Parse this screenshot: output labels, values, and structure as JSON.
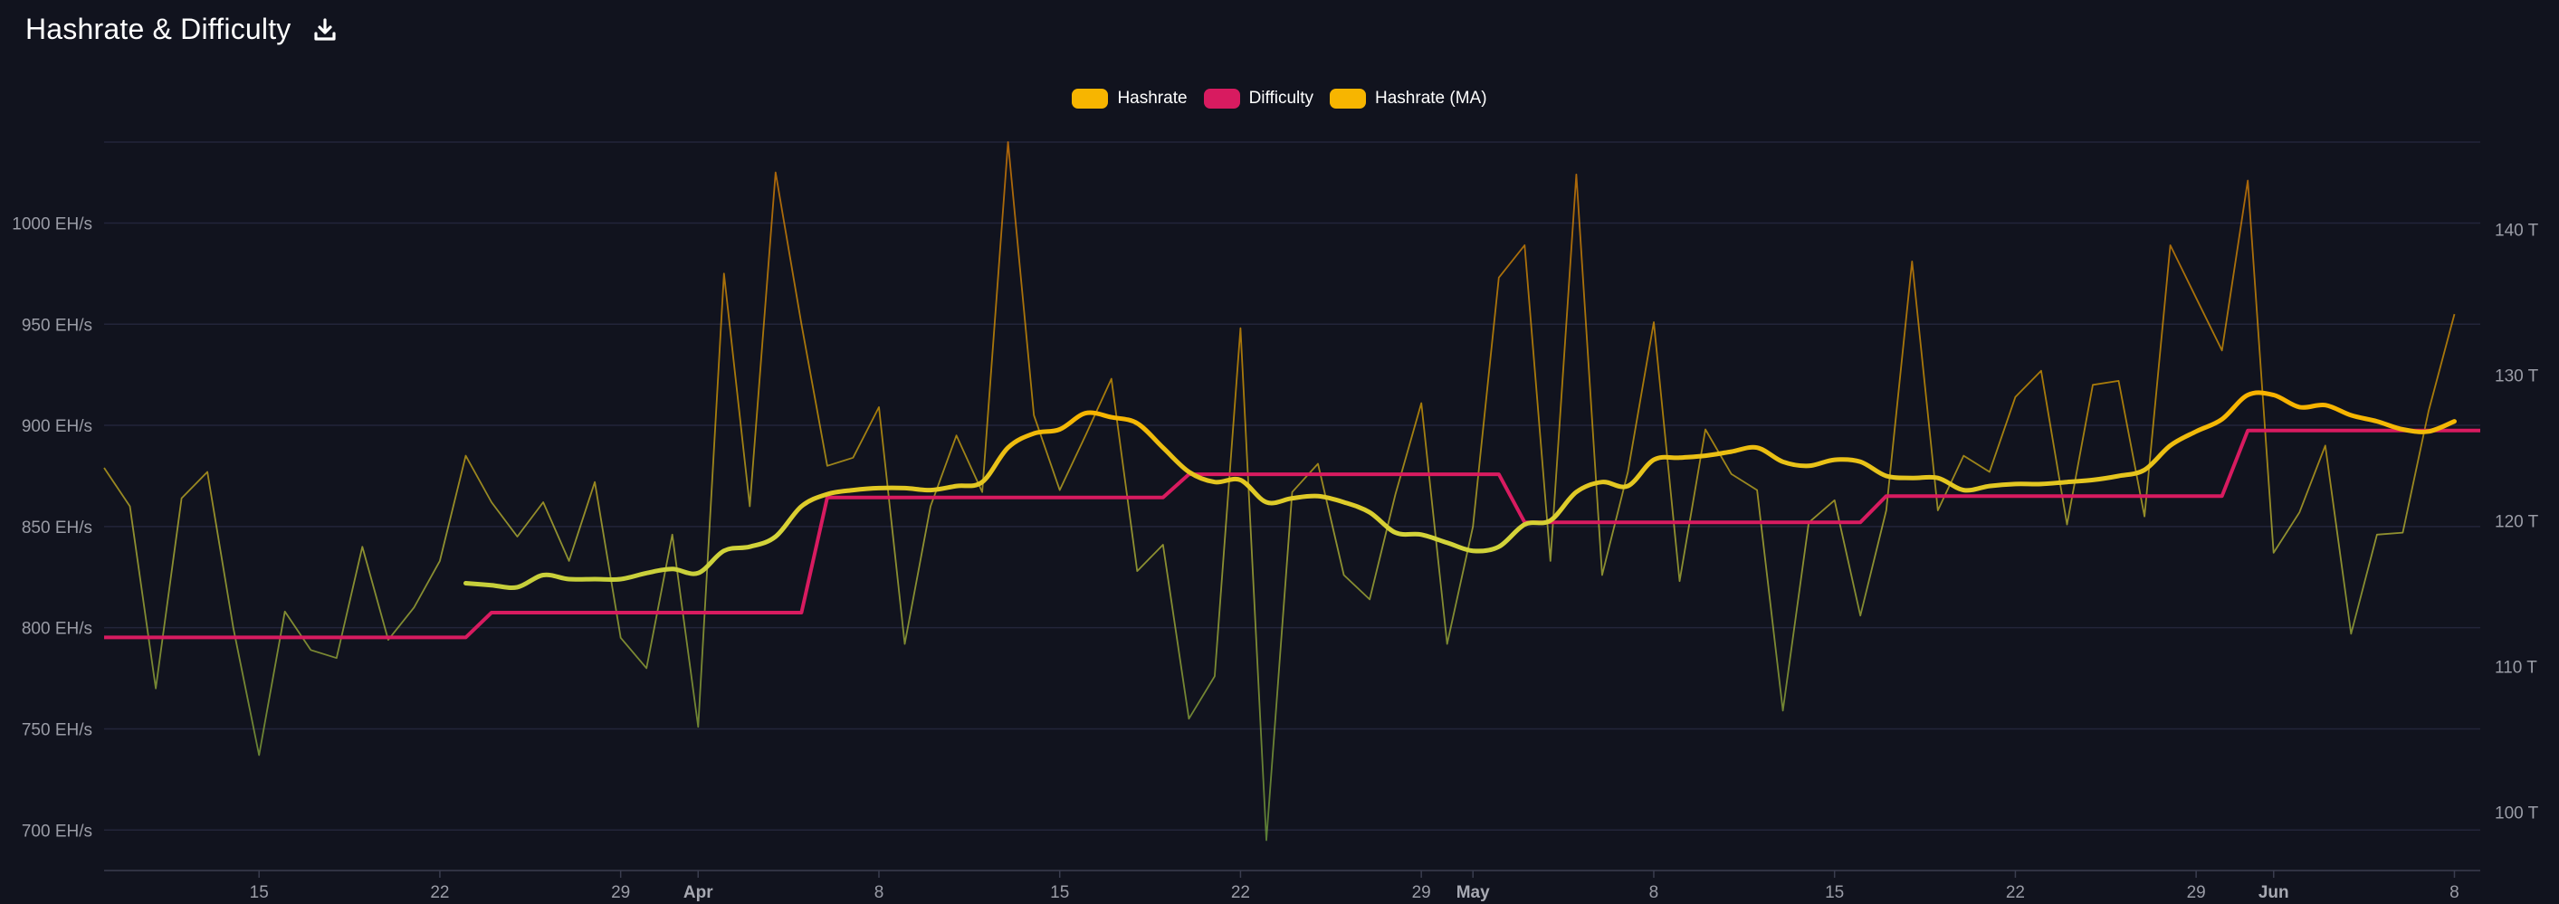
{
  "header": {
    "title": "Hashrate & Difficulty",
    "download_icon": "download-icon"
  },
  "legend": [
    {
      "label": "Hashrate",
      "color": "#f7b500"
    },
    {
      "label": "Difficulty",
      "color": "#d81b60"
    },
    {
      "label": "Hashrate (MA)",
      "color": "#f7b500"
    }
  ],
  "chart_data": {
    "type": "line",
    "x_start": "2024-03-09",
    "x_end": "2024-06-09",
    "x_ticks": [
      {
        "date": "2024-03-15",
        "label": "15",
        "bold": false
      },
      {
        "date": "2024-03-22",
        "label": "22",
        "bold": false
      },
      {
        "date": "2024-03-29",
        "label": "29",
        "bold": false
      },
      {
        "date": "2024-04-01",
        "label": "Apr",
        "bold": true
      },
      {
        "date": "2024-04-08",
        "label": "8",
        "bold": false
      },
      {
        "date": "2024-04-15",
        "label": "15",
        "bold": false
      },
      {
        "date": "2024-04-22",
        "label": "22",
        "bold": false
      },
      {
        "date": "2024-04-29",
        "label": "29",
        "bold": false
      },
      {
        "date": "2024-05-01",
        "label": "May",
        "bold": true
      },
      {
        "date": "2024-05-08",
        "label": "8",
        "bold": false
      },
      {
        "date": "2024-05-15",
        "label": "15",
        "bold": false
      },
      {
        "date": "2024-05-22",
        "label": "22",
        "bold": false
      },
      {
        "date": "2024-05-29",
        "label": "29",
        "bold": false
      },
      {
        "date": "2024-06-01",
        "label": "Jun",
        "bold": true
      },
      {
        "date": "2024-06-08",
        "label": "8",
        "bold": false
      }
    ],
    "y_left": {
      "unit": "EH/s",
      "range": [
        680,
        1040
      ],
      "ticks": [
        {
          "value": 700,
          "label": "700 EH/s"
        },
        {
          "value": 750,
          "label": "750 EH/s"
        },
        {
          "value": 800,
          "label": "800 EH/s"
        },
        {
          "value": 850,
          "label": "850 EH/s"
        },
        {
          "value": 900,
          "label": "900 EH/s"
        },
        {
          "value": 950,
          "label": "950 EH/s"
        },
        {
          "value": 1000,
          "label": "1000 EH/s"
        }
      ]
    },
    "y_right": {
      "unit": "T",
      "range": [
        96,
        146
      ],
      "ticks": [
        {
          "value": 100,
          "label": "100 T"
        },
        {
          "value": 110,
          "label": "110 T"
        },
        {
          "value": 120,
          "label": "120 T"
        },
        {
          "value": 130,
          "label": "130 T"
        },
        {
          "value": 140,
          "label": "140 T"
        }
      ]
    },
    "grid": true,
    "legend_position": "top-center",
    "series": [
      {
        "name": "Hashrate",
        "axis": "left",
        "color": "#f7b500",
        "points": [
          [
            "2024-03-09",
            879
          ],
          [
            "2024-03-10",
            860
          ],
          [
            "2024-03-11",
            770
          ],
          [
            "2024-03-12",
            864
          ],
          [
            "2024-03-13",
            877
          ],
          [
            "2024-03-14",
            800
          ],
          [
            "2024-03-15",
            737
          ],
          [
            "2024-03-16",
            808
          ],
          [
            "2024-03-17",
            789
          ],
          [
            "2024-03-18",
            785
          ],
          [
            "2024-03-19",
            840
          ],
          [
            "2024-03-20",
            794
          ],
          [
            "2024-03-21",
            810
          ],
          [
            "2024-03-22",
            833
          ],
          [
            "2024-03-23",
            885
          ],
          [
            "2024-03-24",
            862
          ],
          [
            "2024-03-25",
            845
          ],
          [
            "2024-03-26",
            862
          ],
          [
            "2024-03-27",
            833
          ],
          [
            "2024-03-28",
            872
          ],
          [
            "2024-03-29",
            795
          ],
          [
            "2024-03-30",
            780
          ],
          [
            "2024-03-31",
            846
          ],
          [
            "2024-04-01",
            751
          ],
          [
            "2024-04-02",
            975
          ],
          [
            "2024-04-03",
            860
          ],
          [
            "2024-04-04",
            1025
          ],
          [
            "2024-04-05",
            950
          ],
          [
            "2024-04-06",
            880
          ],
          [
            "2024-04-07",
            884
          ],
          [
            "2024-04-08",
            909
          ],
          [
            "2024-04-09",
            792
          ],
          [
            "2024-04-10",
            860
          ],
          [
            "2024-04-11",
            895
          ],
          [
            "2024-04-12",
            867
          ],
          [
            "2024-04-13",
            1040
          ],
          [
            "2024-04-14",
            905
          ],
          [
            "2024-04-15",
            868
          ],
          [
            "2024-04-16",
            895
          ],
          [
            "2024-04-17",
            923
          ],
          [
            "2024-04-18",
            828
          ],
          [
            "2024-04-19",
            841
          ],
          [
            "2024-04-20",
            755
          ],
          [
            "2024-04-21",
            776
          ],
          [
            "2024-04-22",
            948
          ],
          [
            "2024-04-23",
            695
          ],
          [
            "2024-04-24",
            867
          ],
          [
            "2024-04-25",
            881
          ],
          [
            "2024-04-26",
            826
          ],
          [
            "2024-04-27",
            814
          ],
          [
            "2024-04-28",
            866
          ],
          [
            "2024-04-29",
            911
          ],
          [
            "2024-04-30",
            792
          ],
          [
            "2024-05-01",
            850
          ],
          [
            "2024-05-02",
            973
          ],
          [
            "2024-05-03",
            989
          ],
          [
            "2024-05-04",
            833
          ],
          [
            "2024-05-05",
            1024
          ],
          [
            "2024-05-06",
            826
          ],
          [
            "2024-05-07",
            877
          ],
          [
            "2024-05-08",
            951
          ],
          [
            "2024-05-09",
            823
          ],
          [
            "2024-05-10",
            898
          ],
          [
            "2024-05-11",
            876
          ],
          [
            "2024-05-12",
            868
          ],
          [
            "2024-05-13",
            759
          ],
          [
            "2024-05-14",
            852
          ],
          [
            "2024-05-15",
            863
          ],
          [
            "2024-05-16",
            806
          ],
          [
            "2024-05-17",
            858
          ],
          [
            "2024-05-18",
            981
          ],
          [
            "2024-05-19",
            858
          ],
          [
            "2024-05-20",
            885
          ],
          [
            "2024-05-21",
            877
          ],
          [
            "2024-05-22",
            914
          ],
          [
            "2024-05-23",
            927
          ],
          [
            "2024-05-24",
            851
          ],
          [
            "2024-05-25",
            920
          ],
          [
            "2024-05-26",
            922
          ],
          [
            "2024-05-27",
            855
          ],
          [
            "2024-05-28",
            989
          ],
          [
            "2024-05-29",
            963
          ],
          [
            "2024-05-30",
            937
          ],
          [
            "2024-05-31",
            1021
          ],
          [
            "2024-06-01",
            837
          ],
          [
            "2024-06-02",
            857
          ],
          [
            "2024-06-03",
            890
          ],
          [
            "2024-06-04",
            797
          ],
          [
            "2024-06-05",
            846
          ],
          [
            "2024-06-06",
            847
          ],
          [
            "2024-06-07",
            907
          ],
          [
            "2024-06-08",
            955
          ]
        ]
      },
      {
        "name": "Difficulty",
        "axis": "right",
        "color": "#d81b60",
        "points": [
          [
            "2024-03-09",
            112.0
          ],
          [
            "2024-03-23",
            112.0
          ],
          [
            "2024-03-24",
            113.7
          ],
          [
            "2024-04-05",
            113.7
          ],
          [
            "2024-04-06",
            121.6
          ],
          [
            "2024-04-19",
            121.6
          ],
          [
            "2024-04-20",
            123.2
          ],
          [
            "2024-05-02",
            123.2
          ],
          [
            "2024-05-03",
            119.9
          ],
          [
            "2024-05-16",
            119.9
          ],
          [
            "2024-05-17",
            121.7
          ],
          [
            "2024-05-30",
            121.7
          ],
          [
            "2024-05-31",
            126.2
          ],
          [
            "2024-06-09",
            126.2
          ]
        ]
      },
      {
        "name": "Hashrate (MA)",
        "axis": "left",
        "color": "#f7b500",
        "points": [
          [
            "2024-03-23",
            822
          ],
          [
            "2024-03-24",
            821
          ],
          [
            "2024-03-25",
            820
          ],
          [
            "2024-03-26",
            826
          ],
          [
            "2024-03-27",
            824
          ],
          [
            "2024-03-28",
            824
          ],
          [
            "2024-03-29",
            824
          ],
          [
            "2024-03-30",
            827
          ],
          [
            "2024-03-31",
            829
          ],
          [
            "2024-04-01",
            827
          ],
          [
            "2024-04-02",
            838
          ],
          [
            "2024-04-03",
            840
          ],
          [
            "2024-04-04",
            845
          ],
          [
            "2024-04-05",
            860
          ],
          [
            "2024-04-06",
            866
          ],
          [
            "2024-04-07",
            868
          ],
          [
            "2024-04-08",
            869
          ],
          [
            "2024-04-09",
            869
          ],
          [
            "2024-04-10",
            868
          ],
          [
            "2024-04-11",
            870
          ],
          [
            "2024-04-12",
            872
          ],
          [
            "2024-04-13",
            889
          ],
          [
            "2024-04-14",
            896
          ],
          [
            "2024-04-15",
            898
          ],
          [
            "2024-04-16",
            906
          ],
          [
            "2024-04-17",
            904
          ],
          [
            "2024-04-18",
            901
          ],
          [
            "2024-04-19",
            889
          ],
          [
            "2024-04-20",
            877
          ],
          [
            "2024-04-21",
            872
          ],
          [
            "2024-04-22",
            873
          ],
          [
            "2024-04-23",
            862
          ],
          [
            "2024-04-24",
            864
          ],
          [
            "2024-04-25",
            865
          ],
          [
            "2024-04-26",
            862
          ],
          [
            "2024-04-27",
            857
          ],
          [
            "2024-04-28",
            847
          ],
          [
            "2024-04-29",
            846
          ],
          [
            "2024-04-30",
            842
          ],
          [
            "2024-05-01",
            838
          ],
          [
            "2024-05-02",
            840
          ],
          [
            "2024-05-03",
            851
          ],
          [
            "2024-05-04",
            853
          ],
          [
            "2024-05-05",
            867
          ],
          [
            "2024-05-06",
            872
          ],
          [
            "2024-05-07",
            870
          ],
          [
            "2024-05-08",
            883
          ],
          [
            "2024-05-09",
            884
          ],
          [
            "2024-05-10",
            885
          ],
          [
            "2024-05-11",
            887
          ],
          [
            "2024-05-12",
            889
          ],
          [
            "2024-05-13",
            882
          ],
          [
            "2024-05-14",
            880
          ],
          [
            "2024-05-15",
            883
          ],
          [
            "2024-05-16",
            882
          ],
          [
            "2024-05-17",
            875
          ],
          [
            "2024-05-18",
            874
          ],
          [
            "2024-05-19",
            874
          ],
          [
            "2024-05-20",
            868
          ],
          [
            "2024-05-21",
            870
          ],
          [
            "2024-05-22",
            871
          ],
          [
            "2024-05-23",
            871
          ],
          [
            "2024-05-24",
            872
          ],
          [
            "2024-05-25",
            873
          ],
          [
            "2024-05-26",
            875
          ],
          [
            "2024-05-27",
            878
          ],
          [
            "2024-05-28",
            890
          ],
          [
            "2024-05-29",
            897
          ],
          [
            "2024-05-30",
            903
          ],
          [
            "2024-05-31",
            915
          ],
          [
            "2024-06-01",
            915
          ],
          [
            "2024-06-02",
            909
          ],
          [
            "2024-06-03",
            910
          ],
          [
            "2024-06-04",
            905
          ],
          [
            "2024-06-05",
            902
          ],
          [
            "2024-06-06",
            898
          ],
          [
            "2024-06-07",
            897
          ],
          [
            "2024-06-08",
            902
          ]
        ]
      }
    ]
  }
}
